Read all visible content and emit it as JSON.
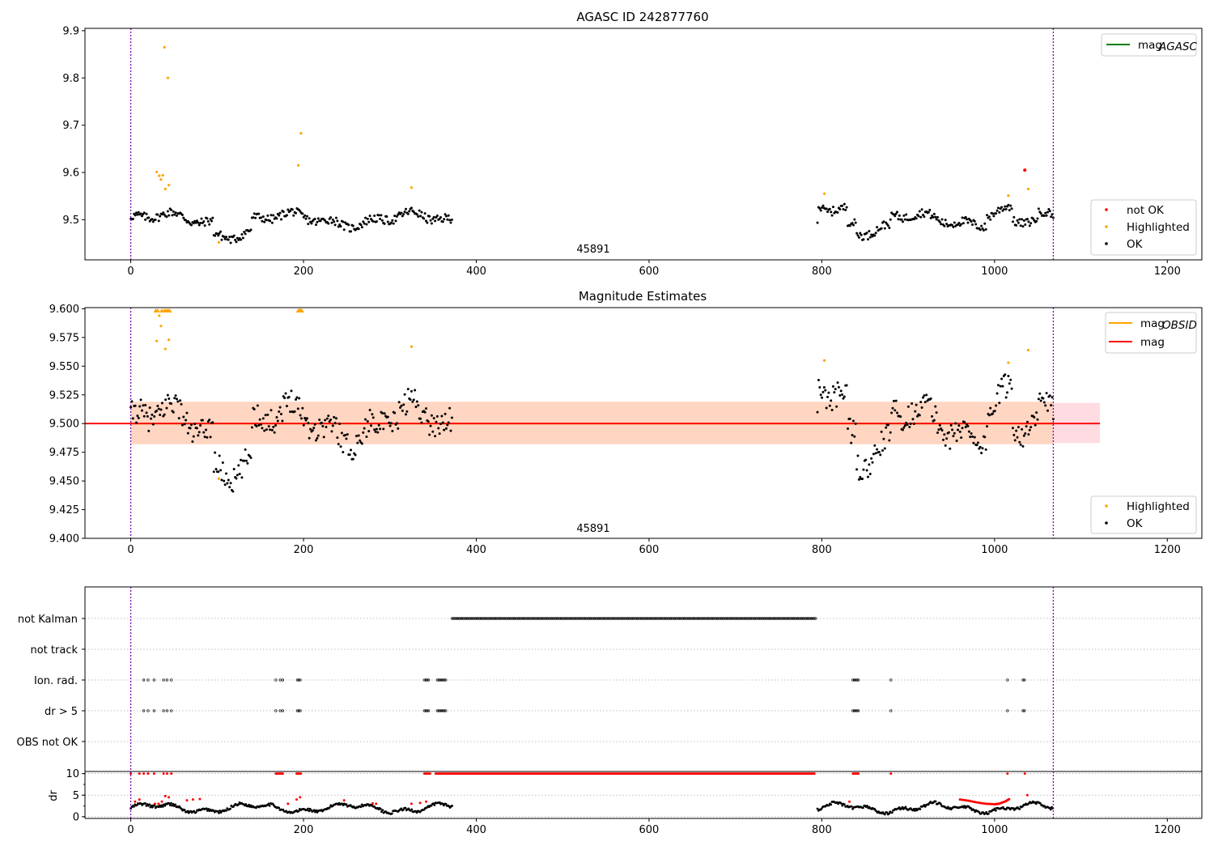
{
  "chart_data": [
    {
      "type": "scatter",
      "title": "AGASC ID 242877760",
      "xlim": [
        -53,
        1240
      ],
      "ylim": [
        9.415,
        9.905
      ],
      "xticks": [
        0,
        200,
        400,
        600,
        800,
        1000,
        1200
      ],
      "yticks": [
        9.5,
        9.6,
        9.7,
        9.8,
        9.9
      ],
      "annotation": "45891",
      "vlines": [
        0,
        1068
      ],
      "legend_lines": [
        {
          "name": "mag_AGASC",
          "color": "#008000"
        }
      ],
      "legend_points": [
        {
          "name": "not OK",
          "color": "#ff0000"
        },
        {
          "name": "Highlighted",
          "color": "#ffa500"
        },
        {
          "name": "OK",
          "color": "#000000"
        }
      ],
      "highlighted": [
        [
          30,
          9.601
        ],
        [
          33,
          9.593
        ],
        [
          35,
          9.585
        ],
        [
          37,
          9.594
        ],
        [
          39,
          9.865
        ],
        [
          40,
          9.565
        ],
        [
          43,
          9.8
        ],
        [
          44,
          9.573
        ],
        [
          102,
          9.452
        ],
        [
          194,
          9.615
        ],
        [
          197,
          9.683
        ],
        [
          325,
          9.568
        ],
        [
          803,
          9.555
        ],
        [
          1016,
          9.551
        ],
        [
          1039,
          9.565
        ]
      ],
      "not_ok": [
        [
          1035,
          9.605
        ]
      ],
      "ok_segments": [
        {
          "x_range": [
            0,
            372
          ],
          "mean": 9.5,
          "amplitude": 0.02
        },
        {
          "x_range": [
            795,
            1068
          ],
          "mean": 9.5,
          "amplitude": 0.02
        }
      ]
    },
    {
      "type": "scatter",
      "title": "Magnitude Estimates",
      "xlim": [
        -53,
        1240
      ],
      "ylim": [
        9.4,
        9.601
      ],
      "xticks": [
        0,
        200,
        400,
        600,
        800,
        1000,
        1200
      ],
      "yticks": [
        9.4,
        9.425,
        9.45,
        9.475,
        9.5,
        9.525,
        9.55,
        9.575,
        9.6
      ],
      "annotation": "45891",
      "vlines": [
        0,
        1068
      ],
      "mag": 9.5,
      "mag_band": [
        9.483,
        9.518
      ],
      "mag_obsid": 9.5,
      "mag_obsid_band": [
        9.482,
        9.519
      ],
      "band_x": [
        0,
        1122
      ],
      "legend_lines": [
        {
          "name": "mag_OBSID",
          "color": "#ffa500"
        },
        {
          "name": "mag",
          "color": "#ff0000"
        }
      ],
      "legend_points": [
        {
          "name": "Highlighted",
          "color": "#ffa500"
        },
        {
          "name": "OK",
          "color": "#000000"
        }
      ],
      "highlighted": [
        [
          30,
          9.572
        ],
        [
          33,
          9.594
        ],
        [
          35,
          9.585
        ],
        [
          40,
          9.565
        ],
        [
          44,
          9.573
        ],
        [
          102,
          9.452
        ],
        [
          325,
          9.567
        ],
        [
          803,
          9.555
        ],
        [
          1016,
          9.553
        ],
        [
          1039,
          9.564
        ]
      ],
      "clipped_upper": [
        29,
        31,
        36,
        39,
        41,
        43,
        45,
        194,
        195,
        196,
        197,
        198
      ]
    },
    {
      "type": "scatter",
      "categories": [
        "not Kalman",
        "not track",
        "Ion. rad.",
        "dr > 5",
        "OBS not OK"
      ],
      "xlim": [
        -53,
        1240
      ],
      "vlines": [
        0,
        1068
      ],
      "flags": {
        "not Kalman": [
          [
            372,
            793
          ]
        ],
        "not track": [],
        "Ion. rad.": [
          [
            15,
            15
          ],
          [
            20,
            20
          ],
          [
            27,
            27
          ],
          [
            38,
            38
          ],
          [
            42,
            42
          ],
          [
            47,
            47
          ],
          [
            168,
            168
          ],
          [
            173,
            173
          ],
          [
            176,
            176
          ],
          [
            193,
            197
          ],
          [
            340,
            346
          ],
          [
            355,
            365
          ],
          [
            836,
            843
          ],
          [
            880,
            880
          ],
          [
            1015,
            1015
          ],
          [
            1033,
            1036
          ]
        ],
        "dr > 5": [
          [
            15,
            15
          ],
          [
            20,
            20
          ],
          [
            27,
            27
          ],
          [
            38,
            38
          ],
          [
            42,
            42
          ],
          [
            47,
            47
          ],
          [
            168,
            168
          ],
          [
            173,
            173
          ],
          [
            176,
            176
          ],
          [
            193,
            197
          ],
          [
            340,
            346
          ],
          [
            355,
            365
          ],
          [
            836,
            843
          ],
          [
            880,
            880
          ],
          [
            1015,
            1015
          ],
          [
            1033,
            1036
          ]
        ],
        "OBS not OK": []
      }
    },
    {
      "type": "scatter",
      "ylabel": "dr",
      "xlim": [
        -53,
        1240
      ],
      "ylim": [
        -0.4,
        10.5
      ],
      "xticks": [
        0,
        200,
        400,
        600,
        800,
        1000,
        1200
      ],
      "yticks": [
        0,
        5,
        10
      ],
      "clip_value": 10,
      "vlines": [
        0,
        1068
      ],
      "red_at_clip": [
        [
          0,
          0
        ],
        [
          10,
          10
        ],
        [
          15,
          15
        ],
        [
          20,
          20
        ],
        [
          27,
          27
        ],
        [
          38,
          38
        ],
        [
          42,
          42
        ],
        [
          47,
          47
        ],
        [
          168,
          176
        ],
        [
          192,
          198
        ],
        [
          340,
          347
        ],
        [
          353,
          793
        ],
        [
          836,
          843
        ],
        [
          880,
          880
        ],
        [
          1015,
          1015
        ],
        [
          1035,
          1035
        ]
      ],
      "red_markers": [
        [
          5,
          3.5
        ],
        [
          10,
          4
        ],
        [
          28,
          3
        ],
        [
          32,
          3
        ],
        [
          36,
          3.5
        ],
        [
          40,
          4.8
        ],
        [
          44,
          4.5
        ],
        [
          65,
          3.8
        ],
        [
          72,
          4
        ],
        [
          80,
          4.1
        ],
        [
          182,
          3
        ],
        [
          192,
          4
        ],
        [
          196,
          4.5
        ],
        [
          247,
          3.8
        ],
        [
          280,
          3.1
        ],
        [
          284,
          3
        ],
        [
          325,
          3
        ],
        [
          335,
          3.2
        ],
        [
          342,
          3.5
        ],
        [
          832,
          3.5
        ],
        [
          1038,
          5
        ]
      ],
      "red_curve": [
        [
          960,
          4
        ],
        [
          970,
          3.7
        ],
        [
          980,
          3.3
        ],
        [
          990,
          3.0
        ],
        [
          1000,
          2.9
        ],
        [
          1005,
          3.0
        ],
        [
          1012,
          3.5
        ],
        [
          1018,
          4.2
        ]
      ],
      "black_segments": [
        {
          "x_range": [
            0,
            372
          ],
          "mean": 2.0
        },
        {
          "x_range": [
            795,
            1068
          ],
          "mean": 2.0
        }
      ]
    }
  ]
}
